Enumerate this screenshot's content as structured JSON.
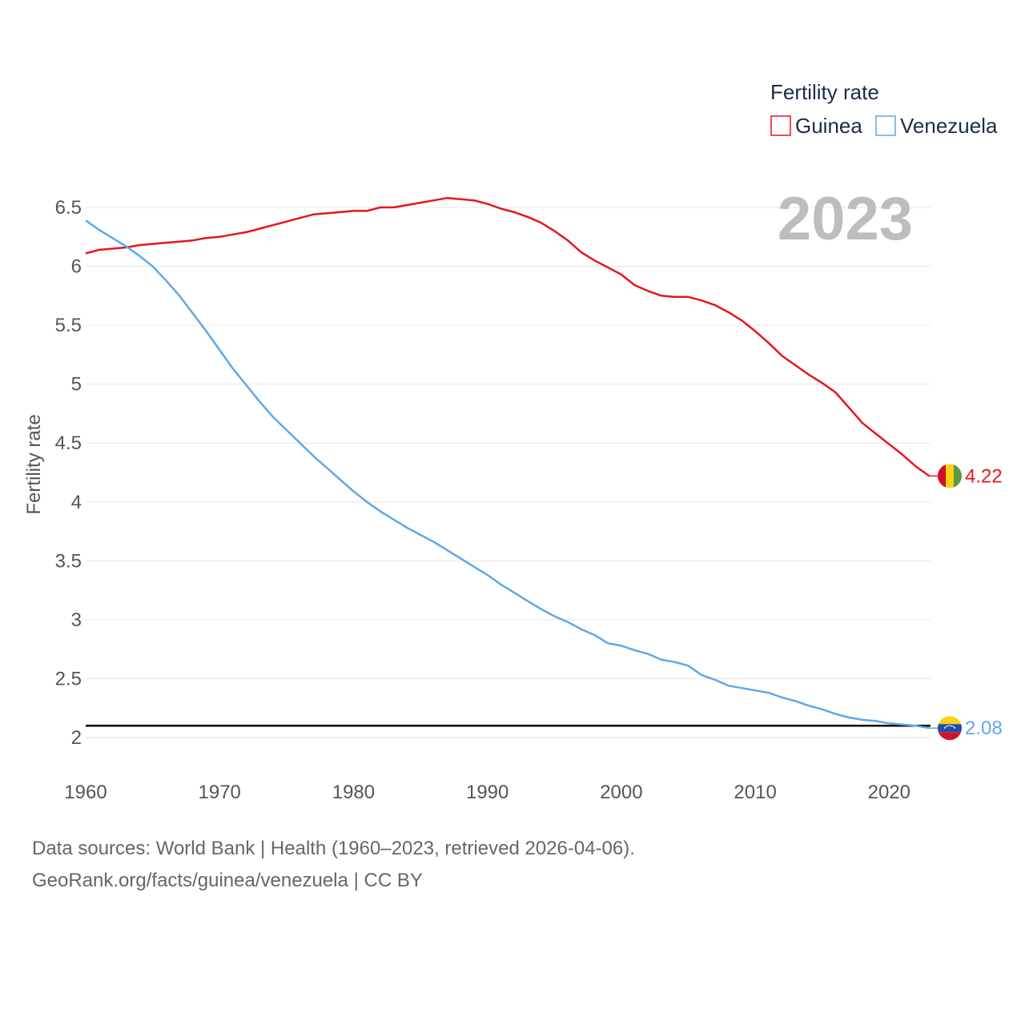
{
  "chart_data": {
    "type": "line",
    "title": "",
    "xlabel": "",
    "ylabel": "Fertility rate",
    "year_label": "2023",
    "xlim": [
      1960,
      2023
    ],
    "ylim": [
      2,
      6.5
    ],
    "x_ticks": [
      1960,
      1970,
      1980,
      1990,
      2000,
      2010,
      2020
    ],
    "y_ticks": [
      2,
      2.5,
      3,
      3.5,
      4,
      4.5,
      5,
      5.5,
      6,
      6.5
    ],
    "y_tick_labels": [
      "2",
      "2.5",
      "3",
      "3.5",
      "4",
      "4.5",
      "5",
      "5.5",
      "6",
      "6.5"
    ],
    "reference_line": 2.1,
    "legend": {
      "title": "Fertility rate",
      "position": "top-right"
    },
    "x": [
      1960,
      1961,
      1962,
      1963,
      1964,
      1965,
      1966,
      1967,
      1968,
      1969,
      1970,
      1971,
      1972,
      1973,
      1974,
      1975,
      1976,
      1977,
      1978,
      1979,
      1980,
      1981,
      1982,
      1983,
      1984,
      1985,
      1986,
      1987,
      1988,
      1989,
      1990,
      1991,
      1992,
      1993,
      1994,
      1995,
      1996,
      1997,
      1998,
      1999,
      2000,
      2001,
      2002,
      2003,
      2004,
      2005,
      2006,
      2007,
      2008,
      2009,
      2010,
      2011,
      2012,
      2013,
      2014,
      2015,
      2016,
      2017,
      2018,
      2019,
      2020,
      2021,
      2022,
      2023
    ],
    "series": [
      {
        "name": "Guinea",
        "color": "#e8141e",
        "end_label": "4.22",
        "flag": "guinea-flag",
        "values": [
          6.11,
          6.14,
          6.15,
          6.16,
          6.18,
          6.19,
          6.2,
          6.21,
          6.22,
          6.24,
          6.25,
          6.27,
          6.29,
          6.32,
          6.35,
          6.38,
          6.41,
          6.44,
          6.45,
          6.46,
          6.47,
          6.47,
          6.5,
          6.5,
          6.52,
          6.54,
          6.56,
          6.58,
          6.57,
          6.56,
          6.53,
          6.49,
          6.46,
          6.42,
          6.37,
          6.3,
          6.22,
          6.12,
          6.05,
          5.99,
          5.93,
          5.84,
          5.79,
          5.75,
          5.74,
          5.74,
          5.71,
          5.67,
          5.61,
          5.54,
          5.45,
          5.35,
          5.24,
          5.16,
          5.08,
          5.01,
          4.93,
          4.8,
          4.67,
          4.58,
          4.49,
          4.4,
          4.3,
          4.22
        ]
      },
      {
        "name": "Venezuela",
        "color": "#5ea8e8",
        "end_label": "2.08",
        "flag": "venezuela-flag",
        "values": [
          6.39,
          6.31,
          6.24,
          6.17,
          6.09,
          6.0,
          5.88,
          5.75,
          5.6,
          5.45,
          5.29,
          5.13,
          4.99,
          4.85,
          4.72,
          4.61,
          4.5,
          4.39,
          4.29,
          4.19,
          4.09,
          4.0,
          3.92,
          3.85,
          3.78,
          3.72,
          3.66,
          3.59,
          3.52,
          3.45,
          3.38,
          3.3,
          3.23,
          3.16,
          3.09,
          3.03,
          2.98,
          2.92,
          2.87,
          2.8,
          2.78,
          2.74,
          2.71,
          2.66,
          2.64,
          2.61,
          2.53,
          2.49,
          2.44,
          2.42,
          2.4,
          2.38,
          2.34,
          2.31,
          2.27,
          2.24,
          2.2,
          2.17,
          2.15,
          2.14,
          2.12,
          2.11,
          2.1,
          2.08
        ]
      }
    ]
  },
  "footer": {
    "sources": "Data sources: World Bank | Health (1960–2023, retrieved 2026-04-06).",
    "credit": "GeoRank.org/facts/guinea/venezuela | CC BY"
  }
}
